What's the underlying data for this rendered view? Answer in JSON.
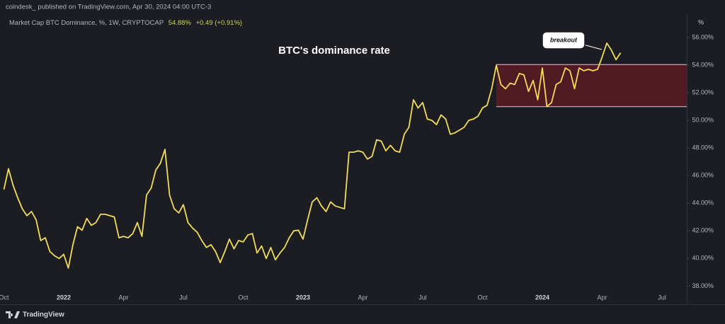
{
  "chart_data": {
    "type": "line",
    "source": "coindesk_ published on TradingView.com, Apr 30, 2024 04:00 UTC-3",
    "symbol": "Market Cap BTC Dominance, %, 1W, CRYPTOCAP",
    "last_value": "54.88%",
    "change": "+0.49 (+0.91%)",
    "title": "BTC's dominance rate",
    "annotation": "breakout",
    "y_unit": "%",
    "brand": "TradingView",
    "color": "#f2dc5d",
    "categories": [
      "Oct",
      null,
      null,
      null,
      null,
      null,
      null,
      null,
      null,
      null,
      null,
      null,
      null,
      "2022",
      null,
      null,
      null,
      null,
      null,
      null,
      null,
      null,
      null,
      null,
      null,
      null,
      "Apr",
      null,
      null,
      null,
      null,
      null,
      null,
      null,
      null,
      null,
      null,
      null,
      null,
      "Jul",
      null,
      null,
      null,
      null,
      null,
      null,
      null,
      null,
      null,
      null,
      null,
      null,
      "Oct",
      null,
      null,
      null,
      null,
      null,
      null,
      null,
      null,
      null,
      null,
      null,
      null,
      "2023",
      null,
      null,
      null,
      null,
      null,
      null,
      null,
      null,
      null,
      null,
      null,
      null,
      "Apr",
      null,
      null,
      null,
      null,
      null,
      null,
      null,
      null,
      null,
      null,
      null,
      null,
      "Jul",
      null,
      null,
      null,
      null,
      null,
      null,
      null,
      null,
      null,
      null,
      null,
      null,
      "Oct",
      null,
      null,
      null,
      null,
      null,
      null,
      null,
      null,
      null,
      null,
      null,
      null,
      "2024",
      null,
      null,
      null,
      null,
      null,
      null,
      null,
      null,
      null,
      null,
      null,
      null,
      "Apr",
      null,
      null,
      null,
      null,
      null,
      null,
      null,
      null,
      null,
      null,
      null,
      null,
      "Jul",
      null,
      null,
      null,
      null,
      null
    ],
    "values": [
      45.0,
      46.5,
      45.3,
      44.4,
      43.6,
      43.1,
      43.4,
      42.8,
      41.3,
      41.5,
      40.5,
      40.2,
      40.0,
      40.3,
      39.3,
      41.0,
      42.3,
      42.05,
      42.9,
      42.4,
      42.6,
      43.2,
      43.2,
      43.1,
      43.0,
      41.5,
      41.6,
      41.5,
      41.8,
      42.6,
      41.6,
      44.6,
      45.1,
      46.4,
      46.9,
      47.9,
      44.6,
      43.6,
      43.3,
      43.9,
      42.6,
      42.2,
      41.9,
      41.3,
      40.8,
      41.0,
      40.5,
      39.7,
      40.5,
      41.4,
      40.7,
      41.3,
      41.2,
      41.7,
      41.8,
      40.4,
      40.9,
      40.0,
      40.8,
      39.9,
      40.4,
      40.8,
      41.5,
      42.0,
      42.05,
      41.4,
      42.8,
      44.1,
      44.4,
      43.8,
      43.4,
      44.1,
      43.8,
      43.7,
      43.6,
      47.7,
      47.7,
      47.8,
      47.7,
      47.2,
      47.4,
      48.6,
      48.5,
      47.8,
      48.2,
      47.8,
      47.7,
      49.0,
      49.5,
      51.5,
      50.9,
      51.3,
      50.1,
      50.0,
      49.7,
      50.4,
      50.1,
      49.0,
      49.1,
      49.3,
      49.5,
      50.0,
      50.1,
      50.3,
      50.9,
      51.1,
      52.3,
      54.0,
      52.6,
      52.3,
      52.7,
      52.6,
      53.4,
      53.3,
      52.1,
      52.9,
      51.5,
      53.8,
      51.0,
      51.3,
      52.6,
      52.8,
      53.8,
      53.6,
      52.3,
      53.8,
      53.6,
      53.7,
      53.6,
      53.7,
      54.6,
      55.6,
      55.1,
      54.4,
      54.9,
      null,
      null,
      null,
      null,
      null,
      null,
      null,
      null,
      null,
      null,
      null,
      null,
      null,
      null
    ],
    "band": {
      "start": 107,
      "low": 51.0,
      "high": 54.05,
      "color": "#5c1a22"
    },
    "ylim": [
      37.2,
      57.7
    ],
    "yticks": [
      {
        "value": 38,
        "label": "38.00%"
      },
      {
        "value": 40,
        "label": "40.00%"
      },
      {
        "value": 42,
        "label": "42.00%"
      },
      {
        "value": 44,
        "label": "44.00%"
      },
      {
        "value": 46,
        "label": "46.00%"
      },
      {
        "value": 48,
        "label": "48.00%"
      },
      {
        "value": 50,
        "label": "50.00%"
      },
      {
        "value": 52,
        "label": "52.00%"
      },
      {
        "value": 54,
        "label": "54.00%"
      },
      {
        "value": 56,
        "label": "56.00%"
      }
    ]
  }
}
